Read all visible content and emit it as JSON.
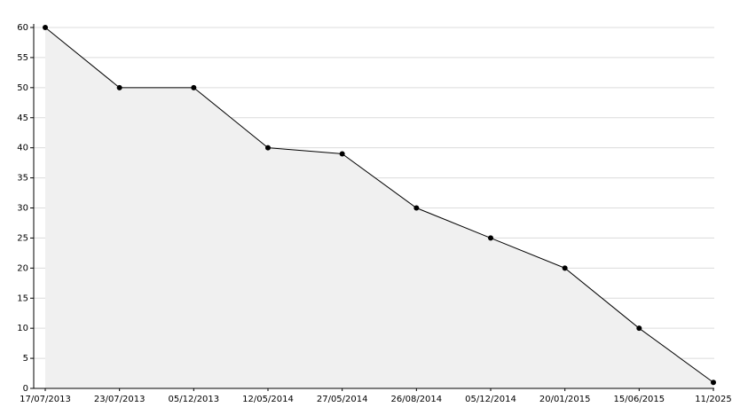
{
  "chart_data": {
    "type": "area",
    "categories": [
      "17/07/2013",
      "23/07/2013",
      "05/12/2013",
      "12/05/2014",
      "27/05/2014",
      "26/08/2014",
      "05/12/2014",
      "20/01/2015",
      "15/06/2015",
      "11/2025"
    ],
    "values": [
      60,
      50,
      50,
      40,
      39,
      30,
      25,
      20,
      10,
      1
    ],
    "color": "#000000",
    "fill": "#f0f0f0",
    "ylim": [
      0,
      60
    ],
    "yticks": [
      0,
      5,
      10,
      15,
      20,
      25,
      30,
      35,
      40,
      45,
      50,
      55,
      60
    ],
    "grid": true
  }
}
